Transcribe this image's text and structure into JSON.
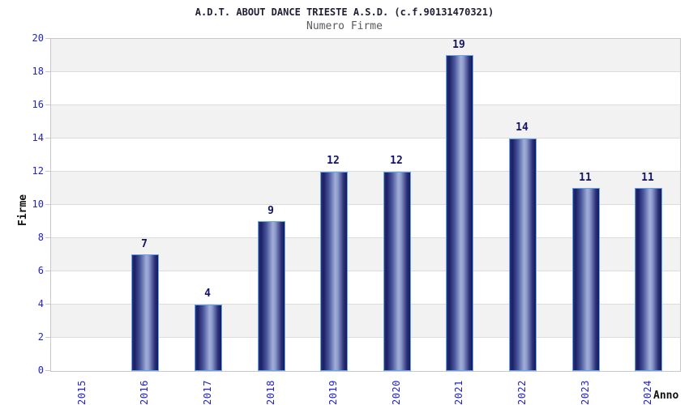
{
  "chart_data": {
    "type": "bar",
    "title": "A.D.T. ABOUT DANCE TRIESTE A.S.D. (c.f.90131470321)",
    "subtitle": "Numero Firme",
    "xlabel": "Anno",
    "ylabel": "Firme",
    "categories": [
      "2015",
      "2016",
      "2017",
      "2018",
      "2019",
      "2020",
      "2021",
      "2022",
      "2023",
      "2024"
    ],
    "values": [
      0,
      7,
      4,
      9,
      12,
      12,
      19,
      14,
      11,
      11
    ],
    "bar_value_labels": [
      "",
      "7",
      "4",
      "9",
      "12",
      "12",
      "19",
      "14",
      "11",
      "11"
    ],
    "ylim": [
      0,
      20
    ],
    "ytick_step": 2,
    "ytick_labels": [
      "0",
      "2",
      "4",
      "6",
      "8",
      "10",
      "12",
      "14",
      "16",
      "18",
      "20"
    ],
    "legend": null,
    "grid": "horizontal alternating bands every 2 units",
    "layout_hints": {
      "bars_with_zero_value_hidden": true,
      "x_tick_labels_rotated_90deg": true,
      "value_labels_above_bars": true
    },
    "colors": {
      "tick_label": "#2222cc",
      "value_label": "#141466",
      "title": "#1f1f33",
      "subtitle": "#5a5a5a",
      "axis_title": "#111111",
      "band_gray": "#f2f2f2",
      "gridline": "#dcdcdc",
      "plot_border": "#c8c8c8",
      "bar_border": "#62a6f0",
      "bar_dark": "#1b1e63",
      "bar_light": "#a3afd8",
      "background": "#ffffff"
    }
  }
}
